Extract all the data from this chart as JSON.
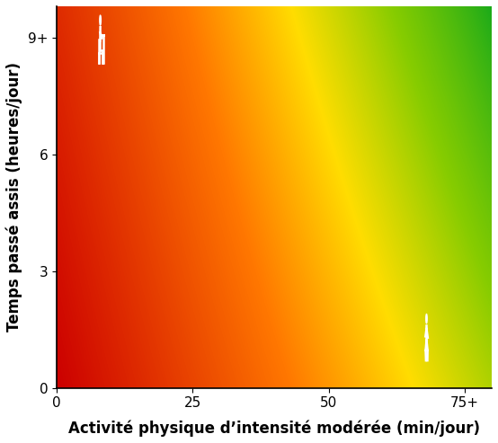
{
  "title": "",
  "xlabel": "Activité physique d’intensité modérée (min/jour)",
  "ylabel": "Temps passé assis (heures/jour)",
  "x_ticks": [
    "0",
    "25",
    "50",
    "75+"
  ],
  "x_tick_vals": [
    0,
    25,
    50,
    75
  ],
  "y_ticks": [
    "0",
    "3",
    "6",
    "9+"
  ],
  "y_tick_vals": [
    0,
    3,
    6,
    9
  ],
  "xlim": [
    0,
    80
  ],
  "ylim": [
    0,
    9.8
  ],
  "xlabel_fontsize": 12,
  "ylabel_fontsize": 12,
  "tick_fontsize": 11,
  "background_color": "#ffffff",
  "cmap_colors": [
    [
      0.0,
      "#1aaa1a"
    ],
    [
      0.25,
      "#88cc00"
    ],
    [
      0.45,
      "#ffdd00"
    ],
    [
      0.65,
      "#ff7700"
    ],
    [
      1.0,
      "#cc0000"
    ]
  ],
  "icon_sitting_x": 8,
  "icon_sitting_y": 8.6,
  "icon_walking_x": 68,
  "icon_walking_y": 0.9
}
